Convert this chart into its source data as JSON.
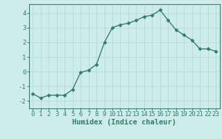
{
  "xlabel": "Humidex (Indice chaleur)",
  "ylabel": "",
  "x_values": [
    0,
    1,
    2,
    3,
    4,
    5,
    6,
    7,
    8,
    9,
    10,
    11,
    12,
    13,
    14,
    15,
    16,
    17,
    18,
    19,
    20,
    21,
    22,
    23
  ],
  "y_values": [
    -1.5,
    -1.8,
    -1.6,
    -1.6,
    -1.6,
    -1.2,
    -0.05,
    0.1,
    0.5,
    2.0,
    3.0,
    3.2,
    3.3,
    3.5,
    3.75,
    3.85,
    4.2,
    3.5,
    2.85,
    2.5,
    2.15,
    1.55,
    1.55,
    1.4
  ],
  "line_color": "#2e7d6e",
  "marker": "D",
  "marker_size": 2.5,
  "background_color": "#ceecea",
  "grid_color": "#b8dbd8",
  "ylim": [
    -2.5,
    4.6
  ],
  "xlim": [
    -0.5,
    23.5
  ],
  "yticks": [
    -2,
    -1,
    0,
    1,
    2,
    3,
    4
  ],
  "xticks": [
    0,
    1,
    2,
    3,
    4,
    5,
    6,
    7,
    8,
    9,
    10,
    11,
    12,
    13,
    14,
    15,
    16,
    17,
    18,
    19,
    20,
    21,
    22,
    23
  ],
  "tick_fontsize": 6.5,
  "xlabel_fontsize": 7.5,
  "line_width": 1.0
}
